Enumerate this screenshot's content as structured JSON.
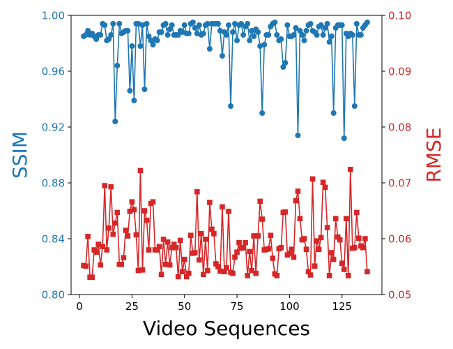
{
  "chart_data": {
    "type": "line",
    "xlabel": "Video Sequences",
    "ylabel_left": "SSIM",
    "ylabel_right": "RMSE",
    "xlim": [
      -4,
      144
    ],
    "ylim_left": [
      0.8,
      1.0
    ],
    "ylim_right": [
      0.05,
      0.1
    ],
    "x_ticks": [
      0,
      25,
      50,
      75,
      100,
      125
    ],
    "y_ticks_left": [
      "0.80",
      "0.84",
      "0.88",
      "0.92",
      "0.96",
      "1.00"
    ],
    "y_ticks_right": [
      "0.05",
      "0.06",
      "0.07",
      "0.08",
      "0.09",
      "0.10"
    ],
    "grid": false,
    "series": [
      {
        "axis": "left",
        "color": "#1f77b4",
        "marker": "circle",
        "values": [
          0.985,
          0.986,
          0.989,
          0.986,
          0.987,
          0.985,
          0.983,
          0.986,
          0.986,
          0.994,
          0.993,
          0.982,
          0.983,
          0.986,
          0.994,
          0.924,
          0.964,
          0.994,
          0.987,
          0.988,
          0.989,
          0.989,
          0.946,
          0.978,
          0.939,
          0.994,
          0.994,
          0.978,
          0.993,
          0.947,
          0.994,
          0.985,
          0.982,
          0.979,
          0.983,
          0.982,
          0.988,
          0.988,
          0.993,
          0.994,
          0.986,
          0.99,
          0.993,
          0.986,
          0.986,
          0.986,
          0.989,
          0.988,
          0.993,
          0.987,
          0.987,
          0.994,
          0.995,
          0.991,
          0.987,
          0.993,
          0.986,
          0.987,
          0.993,
          0.994,
          0.976,
          0.994,
          0.994,
          0.994,
          0.994,
          0.989,
          0.971,
          0.988,
          0.986,
          0.993,
          0.935,
          0.988,
          0.994,
          0.982,
          0.993,
          0.994,
          0.986,
          0.992,
          0.994,
          0.982,
          0.989,
          0.985,
          0.99,
          0.988,
          0.978,
          0.93,
          0.979,
          0.986,
          0.986,
          0.992,
          0.994,
          0.995,
          0.986,
          0.982,
          0.983,
          0.963,
          0.966,
          0.993,
          0.985,
          0.985,
          0.986,
          0.991,
          0.914,
          0.989,
          0.986,
          0.982,
          0.989,
          0.993,
          0.994,
          0.989,
          0.988,
          0.986,
          0.992,
          0.993,
          0.986,
          0.991,
          0.994,
          0.981,
          0.985,
          0.93,
          0.991,
          0.993,
          0.993,
          0.993,
          0.912,
          0.987,
          0.985,
          0.987,
          0.986,
          0.935,
          0.994,
          0.986,
          0.986,
          0.991,
          0.993,
          0.995
        ],
        "x_start": 2
      },
      {
        "axis": "right",
        "color": "#d62728",
        "marker": "square",
        "values": [
          0.0552,
          0.0551,
          0.0604,
          0.0531,
          0.0531,
          0.058,
          0.0576,
          0.059,
          0.0553,
          0.0586,
          0.0695,
          0.058,
          0.0619,
          0.0693,
          0.0608,
          0.0628,
          0.0647,
          0.0554,
          0.0554,
          0.0566,
          0.0615,
          0.0605,
          0.0649,
          0.0666,
          0.0652,
          0.0607,
          0.0543,
          0.0722,
          0.0544,
          0.065,
          0.0633,
          0.058,
          0.0663,
          0.0666,
          0.058,
          0.058,
          0.0586,
          0.0536,
          0.0599,
          0.0554,
          0.0594,
          0.0553,
          0.0584,
          0.059,
          0.0584,
          0.0532,
          0.0597,
          0.0541,
          0.0563,
          0.0532,
          0.0538,
          0.0606,
          0.0574,
          0.0575,
          0.0684,
          0.0562,
          0.0609,
          0.0536,
          0.0599,
          0.0543,
          0.0665,
          0.0617,
          0.0609,
          0.0555,
          0.055,
          0.0542,
          0.0657,
          0.0541,
          0.0548,
          0.0649,
          0.054,
          0.0538,
          0.0567,
          0.0576,
          0.0593,
          0.0583,
          0.0584,
          0.0593,
          0.0534,
          0.0577,
          0.0543,
          0.0605,
          0.0538,
          0.0605,
          0.0667,
          0.0635,
          0.058,
          0.0581,
          0.0582,
          0.0606,
          0.0565,
          0.0537,
          0.0534,
          0.0582,
          0.0584,
          0.0647,
          0.0648,
          0.0571,
          0.0574,
          0.0581,
          0.0567,
          0.0668,
          0.0685,
          0.0636,
          0.0598,
          0.06,
          0.0581,
          0.0541,
          0.0535,
          0.0707,
          0.0551,
          0.0596,
          0.0581,
          0.0602,
          0.0701,
          0.0692,
          0.062,
          0.0534,
          0.0575,
          0.0563,
          0.0636,
          0.0603,
          0.0598,
          0.0556,
          0.0545,
          0.0636,
          0.0534,
          0.0724,
          0.0583,
          0.0584,
          0.0647,
          0.0601,
          0.0587,
          0.0584,
          0.06,
          0.0541
        ],
        "x_start": 2
      }
    ]
  }
}
